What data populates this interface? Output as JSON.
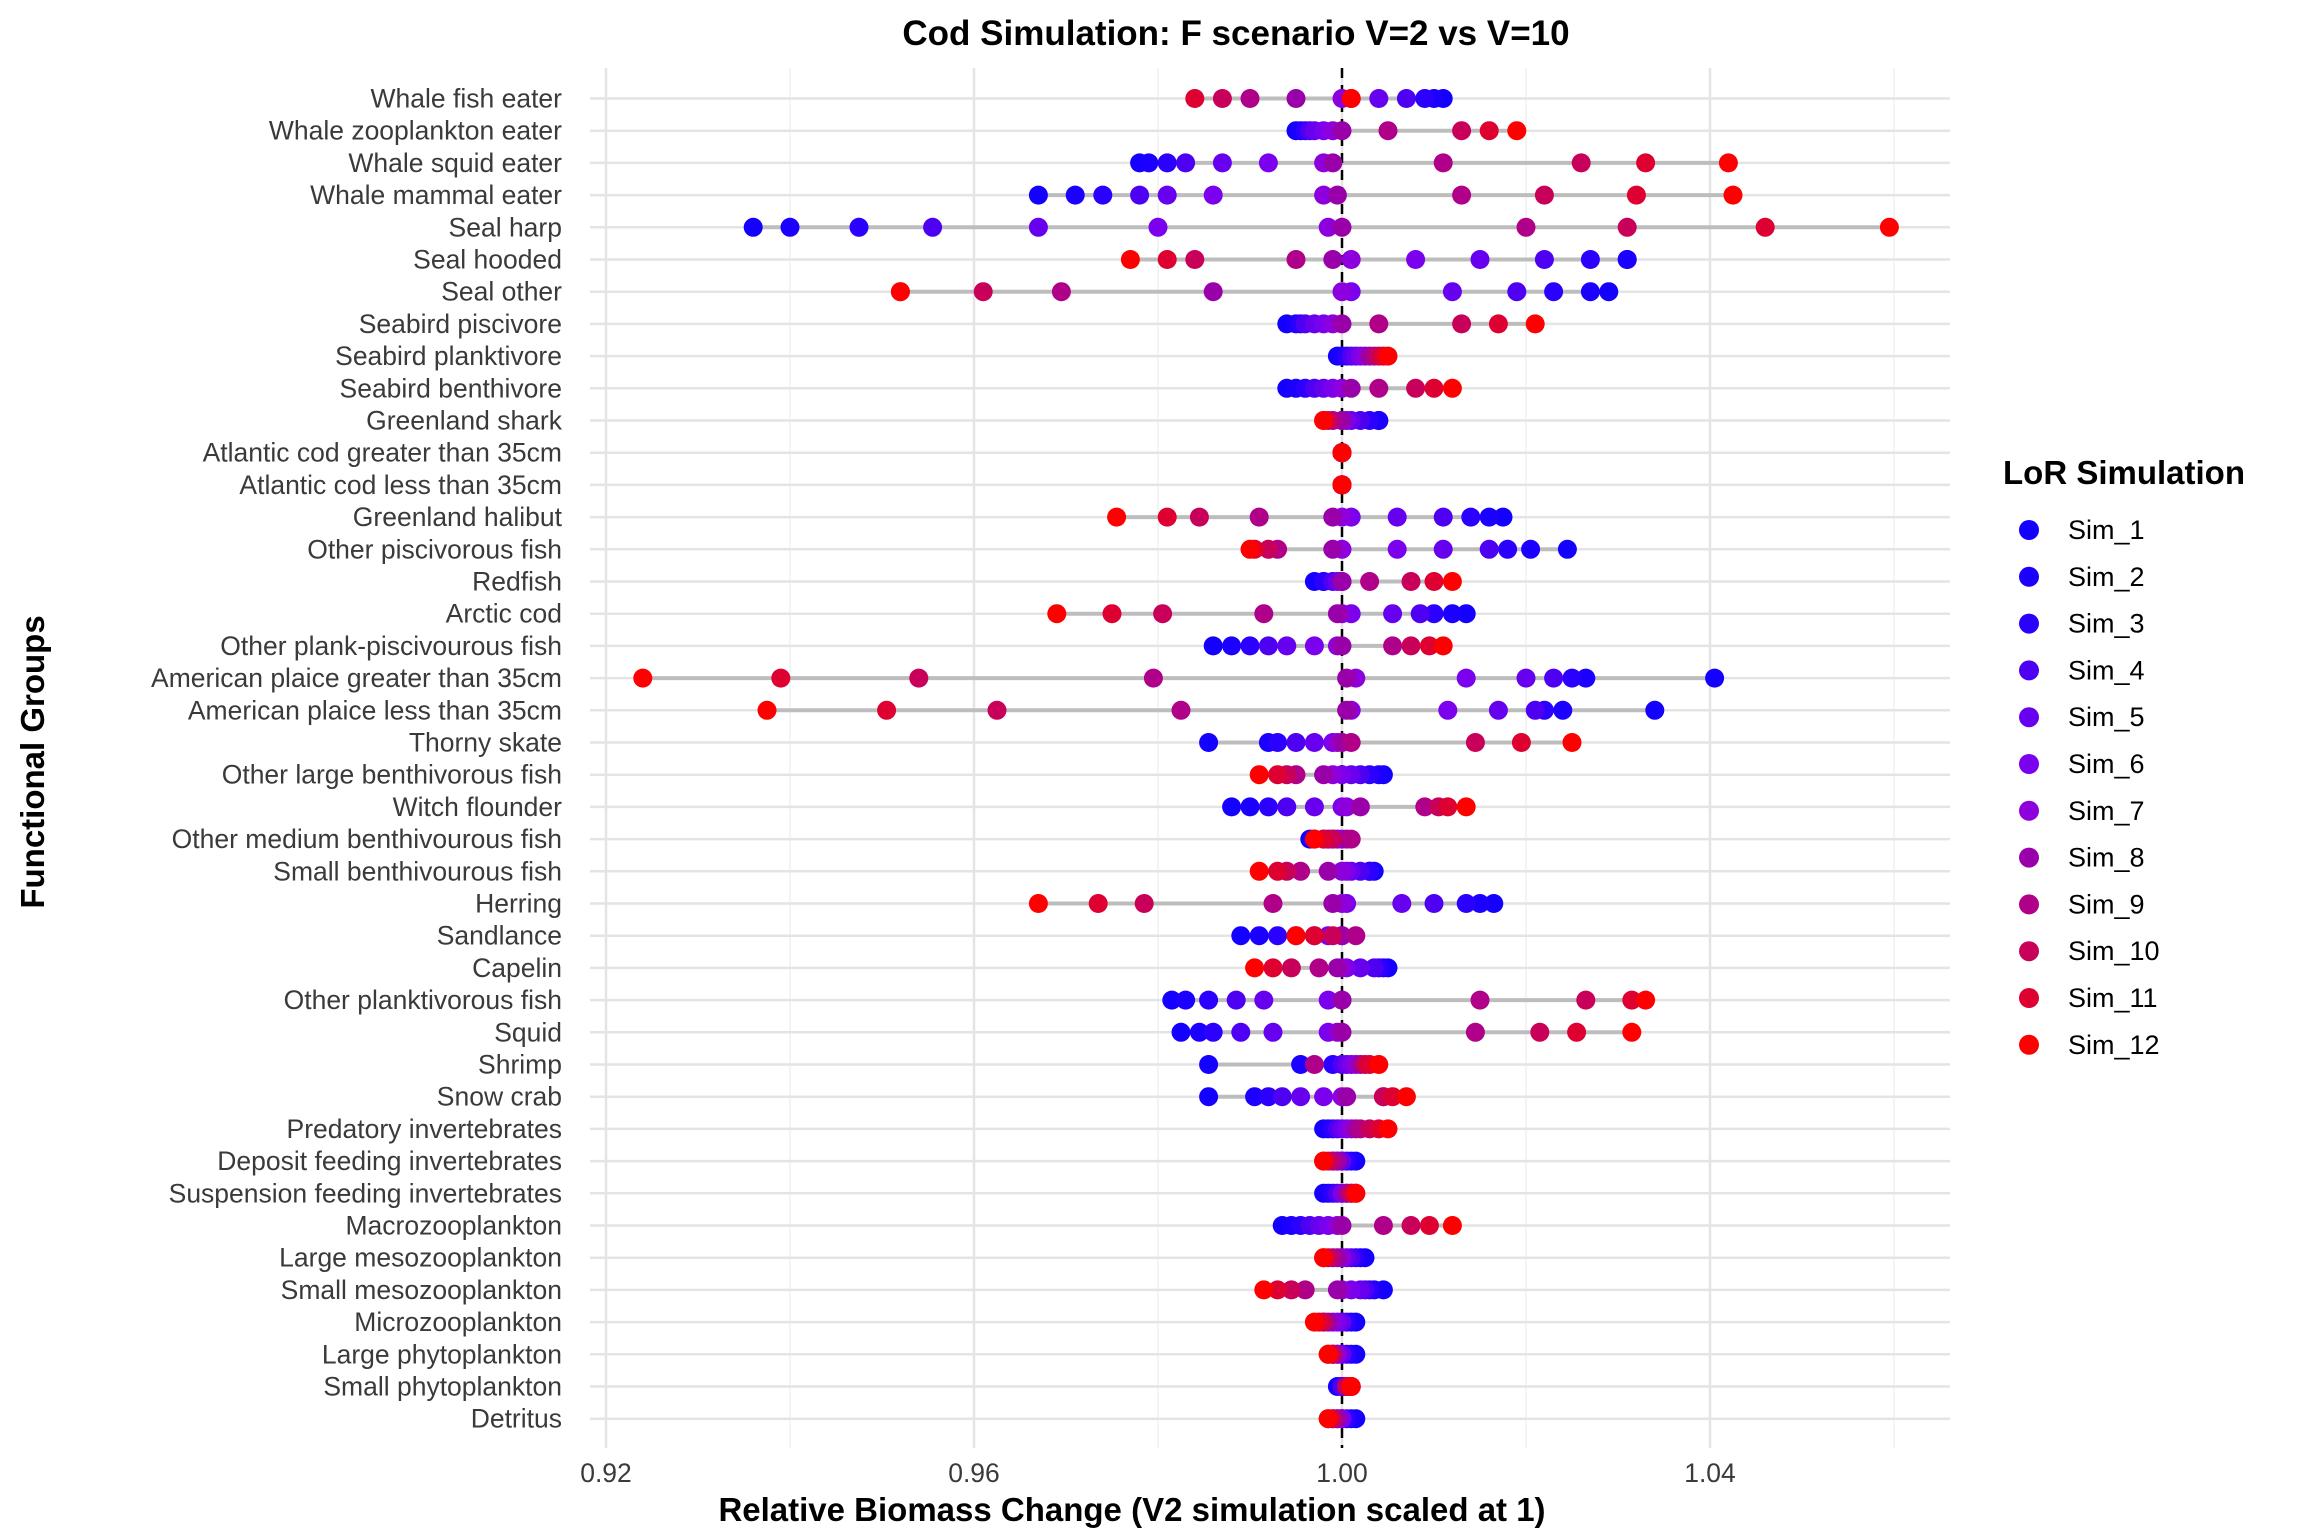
{
  "chart_data": {
    "type": "scatter",
    "title": "Cod Simulation: F scenario V=2 vs V=10",
    "xlabel": "Relative Biomass Change (V2 simulation scaled at 1)",
    "ylabel": "Functional Groups",
    "xlim": [
      0.9175,
      1.0655
    ],
    "xticks": [
      0.92,
      0.96,
      1.0,
      1.04
    ],
    "xtick_labels": [
      "0.92",
      "0.96",
      "1.00",
      "1.04"
    ],
    "reference_line": 1.0,
    "grid": true,
    "legend": {
      "title": "LoR Simulation",
      "position": "right",
      "items": [
        "Sim_1",
        "Sim_2",
        "Sim_3",
        "Sim_4",
        "Sim_5",
        "Sim_6",
        "Sim_7",
        "Sim_8",
        "Sim_9",
        "Sim_10",
        "Sim_11",
        "Sim_12"
      ],
      "colors": [
        "#1400ff",
        "#1c00ff",
        "#2b00ff",
        "#4d00f2",
        "#6600ee",
        "#7a00ee",
        "#8d00dd",
        "#9a00aa",
        "#b0008a",
        "#c8005a",
        "#dd0030",
        "#ff0000"
      ]
    },
    "categories": [
      "Whale fish eater",
      "Whale zooplankton eater",
      "Whale squid eater",
      "Whale mammal eater",
      "Seal harp",
      "Seal hooded",
      "Seal other",
      "Seabird piscivore",
      "Seabird planktivore",
      "Seabird benthivore",
      "Greenland shark",
      "Atlantic cod greater than 35cm",
      "Atlantic cod less than 35cm",
      "Greenland halibut",
      "Other piscivorous fish",
      "Redfish",
      "Arctic cod",
      "Other plank-piscivourous fish",
      "American plaice greater than 35cm",
      "American plaice less than 35cm",
      "Thorny skate",
      "Other large benthivorous fish",
      "Witch flounder",
      "Other medium benthivourous fish",
      "Small benthivourous fish",
      "Herring",
      "Sandlance",
      "Capelin",
      "Other planktivorous fish",
      "Squid",
      "Shrimp",
      "Snow crab",
      "Predatory invertebrates",
      "Deposit feeding invertebrates",
      "Suspension feeding invertebrates",
      "Macrozooplankton",
      "Large mesozooplankton",
      "Small mesozooplankton",
      "Microzooplankton",
      "Large phytoplankton",
      "Small phytoplankton",
      "Detritus"
    ],
    "values": [
      [
        1.011,
        1.01,
        1.009,
        1.007,
        1.004,
        1.001,
        1.0,
        0.995,
        0.99,
        0.987,
        0.984,
        1.001
      ],
      [
        0.995,
        0.9955,
        0.996,
        0.9965,
        0.997,
        0.998,
        0.999,
        1.0,
        1.005,
        1.013,
        1.016,
        1.019
      ],
      [
        0.978,
        0.979,
        0.981,
        0.983,
        0.987,
        0.992,
        0.998,
        0.999,
        1.011,
        1.026,
        1.033,
        1.042
      ],
      [
        0.967,
        0.971,
        0.974,
        0.978,
        0.981,
        0.986,
        0.998,
        0.9995,
        1.013,
        1.022,
        1.032,
        1.0425
      ],
      [
        0.936,
        0.94,
        0.9475,
        0.9555,
        0.967,
        0.98,
        0.9985,
        1.0,
        1.02,
        1.031,
        1.046,
        1.0595
      ],
      [
        1.031,
        1.031,
        1.027,
        1.022,
        1.015,
        1.008,
        1.001,
        0.999,
        0.995,
        0.984,
        0.981,
        0.977
      ],
      [
        1.029,
        1.027,
        1.023,
        1.019,
        1.012,
        1.001,
        1.0,
        0.986,
        0.9695,
        0.961,
        0.952,
        0.952
      ],
      [
        0.994,
        0.995,
        0.9955,
        0.996,
        0.997,
        0.998,
        0.999,
        1.0,
        1.004,
        1.013,
        1.017,
        1.021
      ],
      [
        0.9995,
        1.0,
        1.0005,
        1.001,
        1.0015,
        1.002,
        1.0025,
        1.003,
        1.0035,
        1.004,
        1.0045,
        1.005
      ],
      [
        0.994,
        0.995,
        0.996,
        0.997,
        0.998,
        0.999,
        1.0,
        1.001,
        1.004,
        1.008,
        1.01,
        1.012
      ],
      [
        1.004,
        1.004,
        1.003,
        1.002,
        1.001,
        1.0005,
        1.0,
        1.0,
        0.999,
        0.9985,
        0.998,
        0.998
      ],
      [
        1.0,
        1.0,
        1.0,
        1.0,
        1.0,
        1.0,
        1.0,
        1.0,
        1.0,
        1.0,
        1.0,
        1.0
      ],
      [
        1.0,
        1.0,
        1.0,
        1.0,
        1.0,
        1.0,
        1.0,
        1.0,
        1.0,
        1.0,
        1.0,
        1.0
      ],
      [
        1.0175,
        1.016,
        1.014,
        1.011,
        1.006,
        1.001,
        1.0,
        0.999,
        0.991,
        0.9845,
        0.981,
        0.9755
      ],
      [
        1.0245,
        1.0205,
        1.018,
        1.016,
        1.011,
        1.006,
        1.0,
        0.999,
        0.993,
        0.992,
        0.9905,
        0.99
      ],
      [
        0.997,
        0.998,
        0.998,
        0.999,
        0.9995,
        1.0,
        1.0,
        1.0,
        1.003,
        1.0075,
        1.01,
        1.012
      ],
      [
        1.0135,
        1.012,
        1.01,
        1.0085,
        1.0055,
        1.001,
        1.0,
        0.9995,
        0.9915,
        0.9805,
        0.975,
        0.969
      ],
      [
        0.986,
        0.988,
        0.99,
        0.992,
        0.994,
        0.997,
        0.9995,
        1.0,
        1.0055,
        1.0075,
        1.0095,
        1.011
      ],
      [
        1.0405,
        1.0265,
        1.025,
        1.023,
        1.02,
        1.0135,
        1.0015,
        1.0005,
        0.9795,
        0.954,
        0.939,
        0.924
      ],
      [
        1.034,
        1.024,
        1.022,
        1.021,
        1.017,
        1.0115,
        1.001,
        1.0005,
        0.9825,
        0.9625,
        0.9505,
        0.9375
      ],
      [
        0.9855,
        0.992,
        0.993,
        0.995,
        0.997,
        0.999,
        0.9995,
        1.0,
        1.001,
        1.0145,
        1.0195,
        1.025
      ],
      [
        1.0045,
        1.004,
        1.003,
        1.002,
        1.001,
        1.0,
        0.999,
        0.998,
        0.995,
        0.994,
        0.993,
        0.991
      ],
      [
        0.988,
        0.99,
        0.992,
        0.994,
        0.997,
        1.0,
        1.0005,
        1.002,
        1.009,
        1.0105,
        1.0115,
        1.0135
      ],
      [
        0.9965,
        0.997,
        0.998,
        0.9985,
        0.999,
        0.9995,
        1.0,
        1.0005,
        1.001,
        0.999,
        0.998,
        0.997
      ],
      [
        1.0035,
        1.003,
        1.003,
        1.002,
        1.001,
        1.0005,
        1.0,
        0.9985,
        0.9955,
        0.994,
        0.993,
        0.991
      ],
      [
        1.0165,
        1.015,
        1.0135,
        1.01,
        1.0065,
        1.0005,
        1.0,
        0.999,
        0.9925,
        0.9785,
        0.9735,
        0.967
      ],
      [
        0.989,
        0.991,
        0.993,
        0.995,
        0.997,
        0.9985,
        1.0,
        1.0,
        1.0015,
        0.999,
        0.997,
        0.995
      ],
      [
        1.005,
        1.0045,
        1.004,
        1.0035,
        1.002,
        1.0005,
        1.0,
        0.9995,
        0.9975,
        0.9945,
        0.9925,
        0.9905
      ],
      [
        0.9815,
        0.983,
        0.9855,
        0.9885,
        0.9915,
        0.9985,
        1.0,
        1.0,
        1.015,
        1.0265,
        1.0315,
        1.033
      ],
      [
        0.9825,
        0.9845,
        0.986,
        0.989,
        0.9925,
        0.9985,
        0.9995,
        1.0,
        1.0145,
        1.0215,
        1.0255,
        1.0315
      ],
      [
        0.9855,
        0.9955,
        0.999,
        1.0,
        1.0005,
        1.001,
        1.0015,
        1.002,
        0.997,
        1.0025,
        1.003,
        1.004
      ],
      [
        0.9855,
        0.9905,
        0.992,
        0.9935,
        0.9955,
        0.998,
        1.0,
        1.0005,
        1.0045,
        1.0045,
        1.0055,
        1.007
      ],
      [
        0.998,
        0.9985,
        0.999,
        0.9995,
        1.0,
        1.0005,
        1.001,
        1.0015,
        1.002,
        1.003,
        1.004,
        1.005
      ],
      [
        1.0015,
        1.001,
        1.0005,
        1.0,
        1.0,
        0.9995,
        0.999,
        0.9995,
        0.999,
        0.9985,
        0.998,
        0.998
      ],
      [
        0.998,
        0.9985,
        0.999,
        0.9995,
        1.0,
        1.0,
        1.0005,
        1.0005,
        1.001,
        1.001,
        1.0015,
        1.0015
      ],
      [
        0.9935,
        0.9945,
        0.9955,
        0.9965,
        0.9975,
        0.9985,
        0.9995,
        1.0,
        1.0045,
        1.0075,
        1.0095,
        1.012
      ],
      [
        1.0025,
        1.002,
        1.0015,
        1.001,
        1.0005,
        1.0,
        1.0,
        0.9995,
        0.999,
        0.9985,
        0.998,
        0.998
      ],
      [
        1.0045,
        1.0035,
        1.003,
        1.0025,
        1.002,
        1.001,
        1.0,
        0.9995,
        0.996,
        0.9945,
        0.993,
        0.9915
      ],
      [
        1.0015,
        1.001,
        1.0005,
        1.0,
        1.0,
        0.9995,
        0.999,
        0.9985,
        0.998,
        0.998,
        0.9975,
        0.997
      ],
      [
        1.0015,
        1.001,
        1.0005,
        1.0,
        1.0,
        0.9995,
        0.9995,
        0.999,
        0.999,
        0.999,
        0.9985,
        0.9985
      ],
      [
        0.9995,
        1.0,
        1.0,
        1.0,
        1.0005,
        1.0005,
        1.001,
        1.001,
        1.0005,
        1.0005,
        1.001,
        1.001
      ],
      [
        1.0015,
        1.001,
        1.0005,
        1.0,
        1.0,
        1.0,
        0.9995,
        0.9995,
        0.999,
        0.999,
        0.9985,
        0.9985
      ]
    ]
  }
}
